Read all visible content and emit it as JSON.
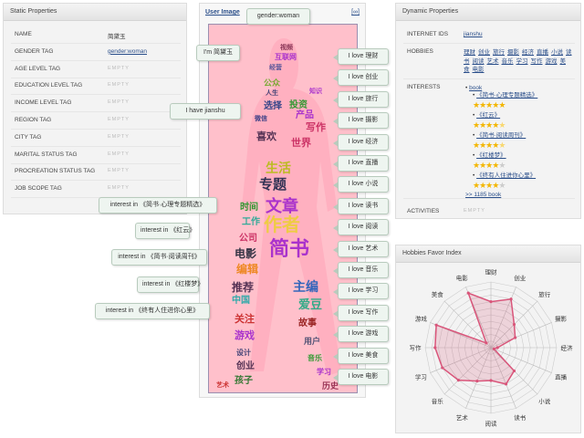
{
  "static": {
    "title": "Static Properties",
    "rows": [
      {
        "key": "NAME",
        "value": "简黛玉",
        "type": "text"
      },
      {
        "key": "GENDER TAG",
        "value": "gender:woman",
        "type": "link"
      },
      {
        "key": "AGE LEVEL TAG",
        "value": "EMPTY",
        "type": "empty"
      },
      {
        "key": "EDUCATION LEVEL TAG",
        "value": "EMPTY",
        "type": "empty"
      },
      {
        "key": "INCOME LEVEL TAG",
        "value": "EMPTY",
        "type": "empty"
      },
      {
        "key": "REGION TAG",
        "value": "EMPTY",
        "type": "empty"
      },
      {
        "key": "CITY TAG",
        "value": "EMPTY",
        "type": "empty"
      },
      {
        "key": "MARITAL STATUS TAG",
        "value": "EMPTY",
        "type": "empty"
      },
      {
        "key": "PROCREATION STATUS TAG",
        "value": "EMPTY",
        "type": "empty"
      },
      {
        "key": "JOB SCOPE TAG",
        "value": "EMPTY",
        "type": "empty"
      }
    ]
  },
  "user_image": {
    "title": "User Image",
    "expand": "[∞]",
    "gender_callout": "gender:woman",
    "name_callout": "I'm 简黛玉",
    "have_callout": "I have jianshu",
    "love_callouts": [
      "I love 理财",
      "I love 创业",
      "I love 旅行",
      "I love 摄影",
      "I love 经济",
      "I love 直播",
      "I love 小说",
      "I love 读书",
      "I love 阅读",
      "I love 艺术",
      "I love 音乐",
      "I love 学习",
      "I love 写作",
      "I love 游戏",
      "I love 美食",
      "I love 电影"
    ],
    "interest_callouts": [
      "interest in 《简书·心理专题精选》",
      "interest in 《红云》",
      "interest in 《简书·阅读周刊》",
      "interest in 《红楼梦》",
      "interest in 《终有人住进你心里》"
    ],
    "words": [
      "视频",
      "互联网",
      "经营",
      "公众",
      "人生",
      "投资",
      "选择",
      "产品",
      "写作",
      "喜欢",
      "世界",
      "生活",
      "专题",
      "时间",
      "文章",
      "工作",
      "作者",
      "公司",
      "电影",
      "简书",
      "编辑",
      "推荐",
      "主编",
      "中国",
      "爱豆",
      "关注",
      "游戏",
      "故事",
      "设计",
      "用户",
      "创业",
      "音乐",
      "孩子",
      "学习",
      "历史",
      "艺术",
      "微信",
      "知识"
    ]
  },
  "dynamic": {
    "title": "Dynamic Properties",
    "internet_ids": {
      "key": "INTERNET IDS",
      "value": "jianshu"
    },
    "hobbies": {
      "key": "HOBBIES",
      "items": [
        "理财",
        "创业",
        "旅行",
        "摄影",
        "经济",
        "直播",
        "小说",
        "读书",
        "阅读",
        "艺术",
        "音乐",
        "学习",
        "写作",
        "游戏",
        "美食",
        "电影"
      ]
    },
    "interests": {
      "key": "INTERESTS",
      "category": "book",
      "books": [
        {
          "title": "《简书·心理专题精选》",
          "rating": 5
        },
        {
          "title": "《红云》",
          "rating": 4.5
        },
        {
          "title": "《简书·阅读周刊》",
          "rating": 4.5
        },
        {
          "title": "《红楼梦》",
          "rating": 4
        },
        {
          "title": "《终有人住进你心里》",
          "rating": 4
        }
      ],
      "more": ">> 1185 book"
    },
    "activities": {
      "key": "ACTIVITIES",
      "value": "EMPTY"
    }
  },
  "chart_data": {
    "type": "radar",
    "title": "Hobbies Favor Index",
    "categories": [
      "理财",
      "创业",
      "旅行",
      "摄影",
      "经济",
      "直播",
      "小说",
      "读书",
      "阅读",
      "艺术",
      "音乐",
      "学习",
      "写作",
      "游戏",
      "美食",
      "电影"
    ],
    "values": [
      7,
      8,
      5,
      4,
      1,
      0.5,
      5,
      6,
      5,
      5.5,
      7,
      8,
      8.5,
      9,
      1,
      9
    ],
    "rmax": 10,
    "grid": true,
    "color": "#d9557a"
  }
}
